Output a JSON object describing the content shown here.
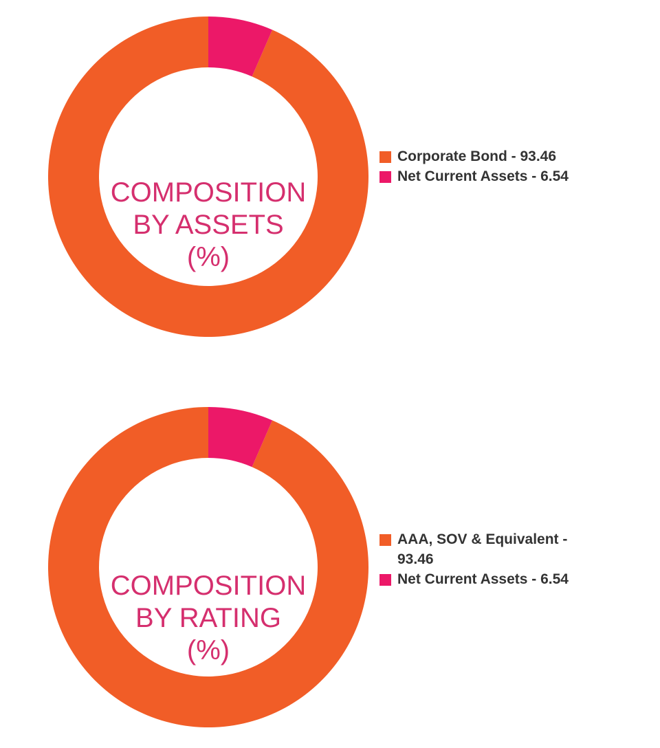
{
  "chart_data": [
    {
      "type": "pie",
      "title_lines": [
        "COMPOSITION",
        "BY ASSETS",
        "(%)"
      ],
      "slices": [
        {
          "label": "Corporate Bond - 93.46",
          "value": 93.46,
          "color": "#f15d27"
        },
        {
          "label": "Net Current Assets - 6.54",
          "value": 6.54,
          "color": "#ec1868"
        }
      ],
      "legend_position": "right"
    },
    {
      "type": "pie",
      "title_lines": [
        "COMPOSITION",
        "BY RATING",
        "(%)"
      ],
      "slices": [
        {
          "label": "AAA, SOV & Equivalent - 93.46",
          "value": 93.46,
          "color": "#f15d27"
        },
        {
          "label": "Net Current Assets - 6.54",
          "value": 6.54,
          "color": "#ec1868"
        }
      ],
      "legend_position": "right"
    }
  ],
  "colors": {
    "title": "#d52f6e",
    "legend_text": "#333333"
  }
}
